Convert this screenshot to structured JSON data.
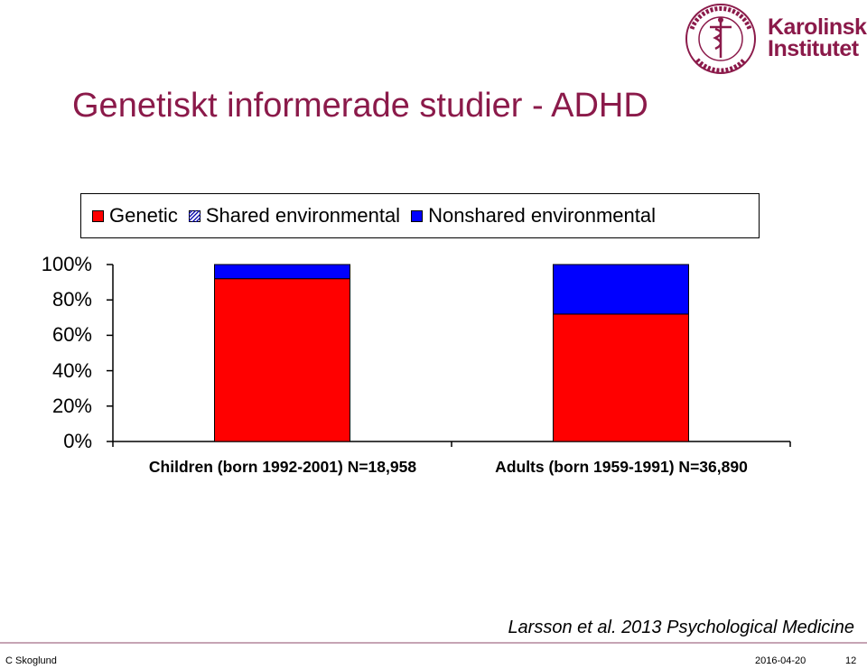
{
  "slide": {
    "title": "Genetiskt informerade studier - ADHD",
    "logo_text_line1": "Karolinska",
    "logo_text_line2": "Institutet",
    "logo_seal_text": "KAROLINSKA INSTITUTET · ANNO 1810",
    "citation": "Larsson et al. 2013 Psychological Medicine",
    "footer_author": "C Skoglund",
    "footer_date": "2016-04-20",
    "footer_page": "12"
  },
  "colors": {
    "title": "#8b1a4a",
    "genetic": "#ff0000",
    "nonshared": "#0000ff",
    "shared_hatch": "#0000aa"
  },
  "chart_data": {
    "type": "bar",
    "stacked": true,
    "categories": [
      "Children (born 1992-2001) N=18,958",
      "Adults (born 1959-1991) N=36,890"
    ],
    "series": [
      {
        "name": "Genetic",
        "values": [
          92,
          72
        ],
        "color": "#ff0000",
        "pattern": "solid"
      },
      {
        "name": "Shared environmental",
        "values": [
          0,
          0
        ],
        "color": "#0000aa",
        "pattern": "hatched"
      },
      {
        "name": "Nonshared environmental",
        "values": [
          8,
          28
        ],
        "color": "#0000ff",
        "pattern": "solid"
      }
    ],
    "yticks": [
      "0%",
      "20%",
      "40%",
      "60%",
      "80%",
      "100%"
    ],
    "ylim": [
      0,
      100
    ],
    "grid": false,
    "legend_position": "top"
  }
}
